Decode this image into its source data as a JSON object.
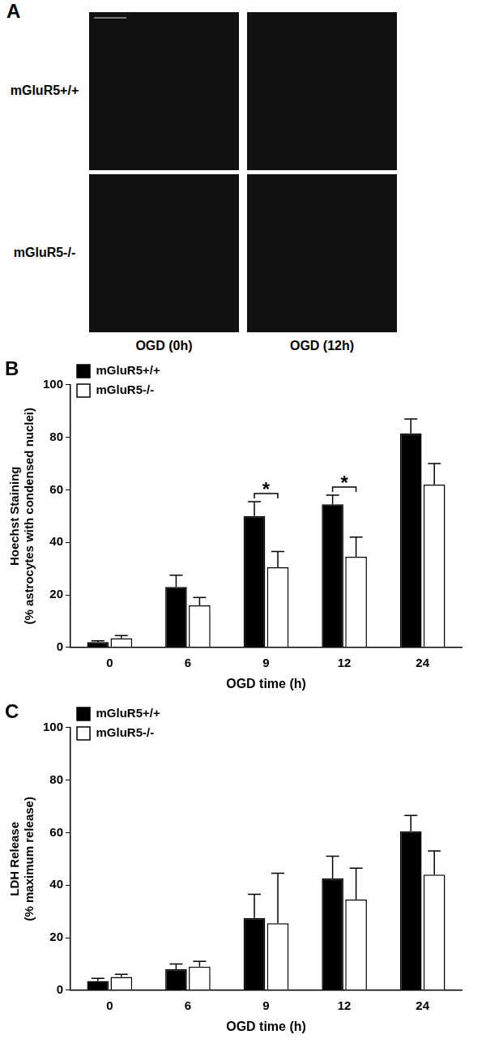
{
  "panel_a": {
    "label": "A",
    "row_labels": [
      "mGluR5+/+",
      "mGluR5-/-"
    ],
    "column_labels": [
      "OGD (0h)",
      "OGD (12h)"
    ]
  },
  "chart_data": [
    {
      "type": "bar",
      "title": "B",
      "categories": [
        "0",
        "6",
        "9",
        "12",
        "24"
      ],
      "series": [
        {
          "name": "mGluR5+/+",
          "color": "#000000",
          "values": [
            2,
            23,
            50,
            54.5,
            81.5
          ],
          "errors": [
            0.5,
            4.5,
            5.5,
            3.5,
            5.5
          ]
        },
        {
          "name": "mGluR5-/-",
          "color": "#ffffff",
          "values": [
            3.5,
            16,
            30.5,
            34.5,
            62
          ],
          "errors": [
            1,
            3,
            6,
            7.5,
            8
          ]
        }
      ],
      "x_label": "OGD time (h)",
      "y_label": [
        "Hoechst Staining",
        "(% astrocytes with condensed nuclei)"
      ],
      "ylim": [
        0,
        100
      ],
      "yticks": [
        0,
        20,
        40,
        60,
        80,
        100
      ],
      "grid": false,
      "legend": "top-left",
      "annotations": [
        {
          "text": "*",
          "category": "9"
        },
        {
          "text": "*",
          "category": "12"
        }
      ]
    },
    {
      "type": "bar",
      "title": "C",
      "categories": [
        "0",
        "6",
        "9",
        "12",
        "24"
      ],
      "series": [
        {
          "name": "mGluR5+/+",
          "color": "#000000",
          "values": [
            3.5,
            8,
            27.5,
            42.5,
            60.5
          ],
          "errors": [
            1,
            2,
            9,
            8.5,
            6
          ]
        },
        {
          "name": "mGluR5-/-",
          "color": "#ffffff",
          "values": [
            5,
            9,
            25.5,
            34.5,
            44
          ],
          "errors": [
            1,
            2,
            19,
            12,
            9
          ]
        }
      ],
      "x_label": "OGD time (h)",
      "y_label": [
        "LDH Release",
        "(% maximum release)"
      ],
      "ylim": [
        0,
        100
      ],
      "yticks": [
        0,
        20,
        40,
        60,
        80,
        100
      ],
      "grid": false,
      "legend": "top-left"
    }
  ]
}
